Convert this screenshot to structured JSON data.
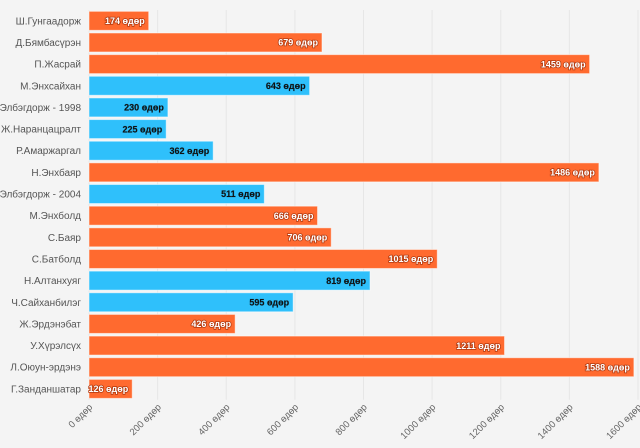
{
  "chart_data": {
    "type": "bar",
    "orientation": "horizontal",
    "categories": [
      "Ш.Гунгаадорж",
      "Д.Бямбасүрэн",
      "П.Жасрай",
      "М.Энхсайхан",
      "Ц.Элбэгдорж - 1998",
      "Ж.Наранцацралт",
      "Р.Амаржаргал",
      "Н.Энхбаяр",
      "Ц.Элбэгдорж - 2004",
      "М.Энхболд",
      "С.Баяр",
      "С.Батболд",
      "Н.Алтанхуяг",
      "Ч.Сайханбилэг",
      "Ж.Эрдэнэбат",
      "У.Хүрэлсүх",
      "Л.Оюун-эрдэнэ",
      "Г.Занданшатар"
    ],
    "values": [
      174,
      679,
      1459,
      643,
      230,
      225,
      362,
      1486,
      511,
      666,
      706,
      1015,
      819,
      595,
      426,
      1211,
      1588,
      126
    ],
    "groups": [
      "orange",
      "orange",
      "orange",
      "blue",
      "blue",
      "blue",
      "blue",
      "orange",
      "blue",
      "orange",
      "orange",
      "orange",
      "blue",
      "blue",
      "orange",
      "orange",
      "orange",
      "orange"
    ],
    "colors": {
      "orange": "#ff6a2f",
      "blue": "#2fc0fb"
    },
    "unit": "өдөр",
    "xlim": [
      0,
      1600
    ],
    "xticks": [
      0,
      200,
      400,
      600,
      800,
      1000,
      1200,
      1400,
      1600
    ],
    "grid": true
  }
}
